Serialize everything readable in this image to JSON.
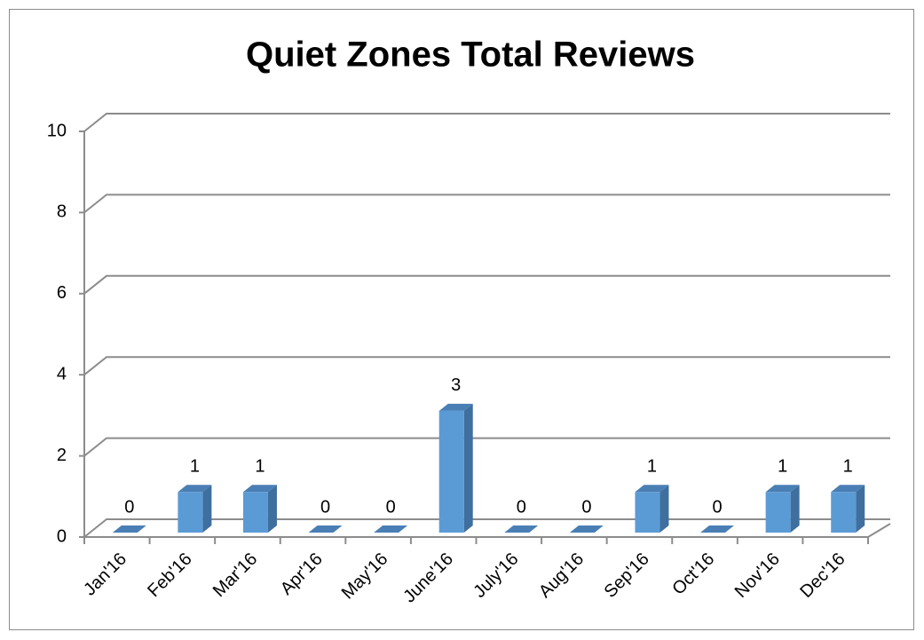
{
  "chart_data": {
    "type": "bar3d",
    "title": "Quiet Zones Total Reviews",
    "categories": [
      "Jan'16",
      "Feb'16",
      "Mar'16",
      "Apr'16",
      "May'16",
      "June'16",
      "July'16",
      "Aug'16",
      "Sep'16",
      "Oct'16",
      "Nov'16",
      "Dec'16"
    ],
    "values": [
      0,
      1,
      1,
      0,
      0,
      3,
      0,
      0,
      1,
      0,
      1,
      1
    ],
    "color": "#5b9bd5",
    "ylim": [
      0,
      10
    ],
    "yticks": [
      0,
      2,
      4,
      6,
      8,
      10
    ],
    "grid": true
  }
}
